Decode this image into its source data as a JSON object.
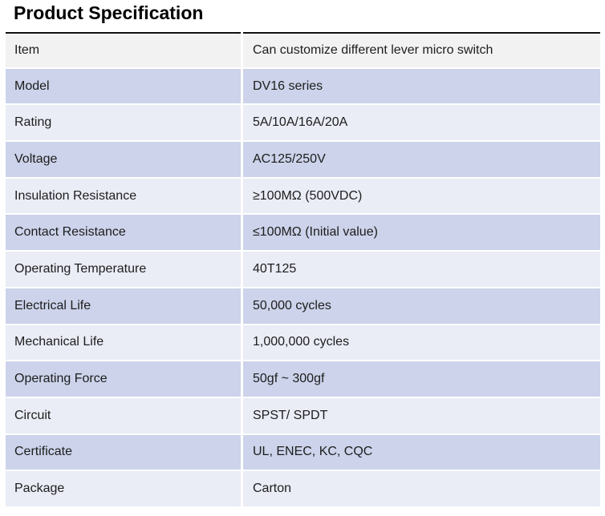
{
  "page": {
    "title": "Product Specification"
  },
  "table": {
    "rows": [
      {
        "label": "Item",
        "value": "Can customize different lever micro switch"
      },
      {
        "label": "Model",
        "value": "DV16 series"
      },
      {
        "label": "Rating",
        "value": "5A/10A/16A/20A"
      },
      {
        "label": "Voltage",
        "value": "AC125/250V"
      },
      {
        "label": "Insulation Resistance",
        "value": "≥100MΩ (500VDC)"
      },
      {
        "label": "Contact Resistance",
        "value": "≤100MΩ (Initial value)"
      },
      {
        "label": "Operating Temperature",
        "value": "40T125"
      },
      {
        "label": "Electrical Life",
        "value": "50,000 cycles"
      },
      {
        "label": "Mechanical Life",
        "value": "1,000,000 cycles"
      },
      {
        "label": "Operating Force",
        "value": "50gf ~ 300gf"
      },
      {
        "label": "Circuit",
        "value": "SPST/ SPDT"
      },
      {
        "label": "Certificate",
        "value": "UL, ENEC, KC, CQC"
      },
      {
        "label": "Package",
        "value": "Carton"
      }
    ]
  },
  "colors": {
    "header_row": "#f2f2f2",
    "band_dark": "#ccd3ea",
    "band_light": "#eaecf6",
    "rule": "#111111",
    "text": "#1d1d1d"
  }
}
